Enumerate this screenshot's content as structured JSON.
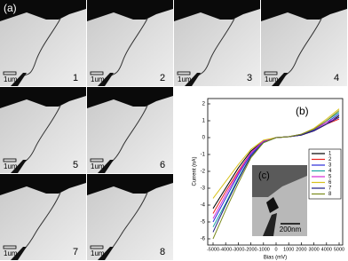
{
  "figure": {
    "panel_label": "(a)",
    "frames": [
      {
        "label": "1",
        "scale": "1um"
      },
      {
        "label": "2",
        "scale": "1um"
      },
      {
        "label": "3",
        "scale": "1um"
      },
      {
        "label": "4",
        "scale": "1um"
      },
      {
        "label": "5",
        "scale": "1um"
      },
      {
        "label": "6",
        "scale": "1um"
      },
      {
        "label": "7",
        "scale": "1um"
      },
      {
        "label": "8",
        "scale": "1um"
      }
    ]
  },
  "chart_data": {
    "type": "line",
    "panel_label": "(b)",
    "x_label": "Bias (mV)",
    "y_label": "Current (nA)",
    "x": [
      -5000,
      -4000,
      -3000,
      -2000,
      -1000,
      0,
      1000,
      2000,
      3000,
      4000,
      5000
    ],
    "series": [
      {
        "name": "1",
        "color": "#000000",
        "values": [
          -4.2,
          -3.0,
          -1.8,
          -0.8,
          -0.2,
          0,
          0.05,
          0.15,
          0.4,
          0.8,
          1.3
        ]
      },
      {
        "name": "2",
        "color": "#e8211d",
        "values": [
          -4.5,
          -3.2,
          -2.0,
          -0.9,
          -0.2,
          0,
          0.05,
          0.15,
          0.4,
          0.8,
          1.1
        ]
      },
      {
        "name": "3",
        "color": "#2b2bd9",
        "values": [
          -5.0,
          -3.6,
          -2.2,
          -1.0,
          -0.25,
          0,
          0.05,
          0.15,
          0.45,
          0.9,
          1.4
        ]
      },
      {
        "name": "4",
        "color": "#1aa3a3",
        "values": [
          -5.3,
          -3.9,
          -2.4,
          -1.1,
          -0.3,
          0,
          0.05,
          0.2,
          0.5,
          1.0,
          1.5
        ]
      },
      {
        "name": "5",
        "color": "#d62ad6",
        "values": [
          -4.8,
          -3.4,
          -2.1,
          -0.9,
          -0.2,
          0,
          0.05,
          0.2,
          0.5,
          0.9,
          1.2
        ]
      },
      {
        "name": "6",
        "color": "#d8c21c",
        "values": [
          -3.6,
          -2.6,
          -1.6,
          -0.7,
          -0.15,
          0,
          0.05,
          0.2,
          0.55,
          1.1,
          1.7
        ]
      },
      {
        "name": "7",
        "color": "#1c1c80",
        "values": [
          -5.6,
          -4.0,
          -2.5,
          -1.1,
          -0.3,
          0,
          0.05,
          0.15,
          0.4,
          0.8,
          1.2
        ]
      },
      {
        "name": "8",
        "color": "#7a8a1c",
        "values": [
          -6.0,
          -4.3,
          -2.7,
          -1.2,
          -0.3,
          0,
          0.05,
          0.2,
          0.5,
          1.0,
          1.6
        ]
      }
    ],
    "xlim": [
      -5000,
      5000
    ],
    "xticks": [
      -5000,
      -4000,
      -3000,
      -2000,
      -1000,
      0,
      1000,
      2000,
      3000,
      4000,
      5000
    ],
    "ylim": [
      -6,
      2
    ],
    "yticks": [
      -6,
      -5,
      -4,
      -3,
      -2,
      -1,
      0,
      1,
      2
    ],
    "legend": "right",
    "inset": {
      "label": "(c)",
      "scale": "200nm"
    }
  }
}
